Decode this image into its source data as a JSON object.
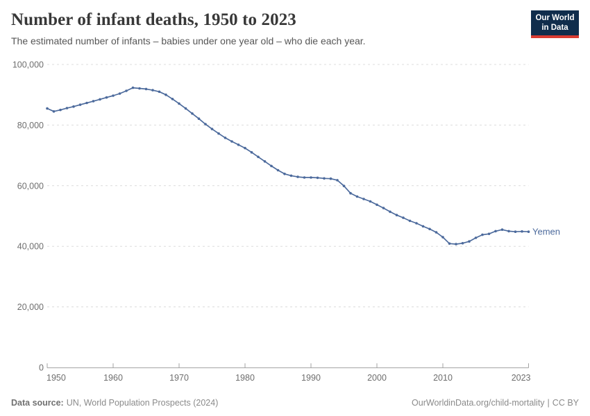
{
  "header": {
    "title": "Number of infant deaths, 1950 to 2023",
    "subtitle": "The estimated number of infants – babies under one year old – who die each year."
  },
  "logo": {
    "line1": "Our World",
    "line2": "in Data",
    "bg_color": "#102d4c",
    "accent_color": "#d93b32"
  },
  "chart_data": {
    "type": "line",
    "title": "Number of infant deaths, 1950 to 2023",
    "xlabel": "",
    "ylabel": "",
    "xlim": [
      1950,
      2023
    ],
    "ylim": [
      0,
      100000
    ],
    "x_ticks": [
      1950,
      1960,
      1970,
      1980,
      1990,
      2000,
      2010,
      2023
    ],
    "y_ticks": [
      0,
      20000,
      40000,
      60000,
      80000,
      100000
    ],
    "grid": "horizontal-dashed",
    "legend_position": "end-of-line-label",
    "series": [
      {
        "name": "Yemen",
        "color": "#4C6A9C",
        "x": [
          1950,
          1951,
          1952,
          1953,
          1954,
          1955,
          1956,
          1957,
          1958,
          1959,
          1960,
          1961,
          1962,
          1963,
          1964,
          1965,
          1966,
          1967,
          1968,
          1969,
          1970,
          1971,
          1972,
          1973,
          1974,
          1975,
          1976,
          1977,
          1978,
          1979,
          1980,
          1981,
          1982,
          1983,
          1984,
          1985,
          1986,
          1987,
          1988,
          1989,
          1990,
          1991,
          1992,
          1993,
          1994,
          1995,
          1996,
          1997,
          1998,
          1999,
          2000,
          2001,
          2002,
          2003,
          2004,
          2005,
          2006,
          2007,
          2008,
          2009,
          2010,
          2011,
          2012,
          2013,
          2014,
          2015,
          2016,
          2017,
          2018,
          2019,
          2020,
          2021,
          2022,
          2023
        ],
        "values": [
          85500,
          84500,
          85000,
          85600,
          86100,
          86700,
          87300,
          87900,
          88500,
          89100,
          89700,
          90400,
          91300,
          92300,
          92100,
          91900,
          91500,
          91000,
          90000,
          88600,
          87100,
          85500,
          83800,
          82100,
          80300,
          78700,
          77200,
          75800,
          74600,
          73500,
          72400,
          71000,
          69500,
          68000,
          66500,
          65100,
          63900,
          63300,
          62900,
          62700,
          62700,
          62600,
          62400,
          62300,
          61800,
          59900,
          57500,
          56400,
          55600,
          54800,
          53700,
          52600,
          51400,
          50300,
          49400,
          48400,
          47600,
          46600,
          45700,
          44600,
          43000,
          40900,
          40700,
          41000,
          41600,
          42800,
          43800,
          44100,
          45000,
          45500,
          45000,
          44800,
          44900,
          44800
        ]
      }
    ],
    "style": {
      "gridline_color": "#dcdcdc",
      "axis_color": "#a3a3a3",
      "tick_label_color": "#6e6e6e"
    }
  },
  "footer": {
    "datasource_label": "Data source:",
    "datasource_value": "UN, World Population Prospects (2024)",
    "link": "OurWorldinData.org/child-mortality",
    "separator": "|",
    "license": "CC BY"
  }
}
